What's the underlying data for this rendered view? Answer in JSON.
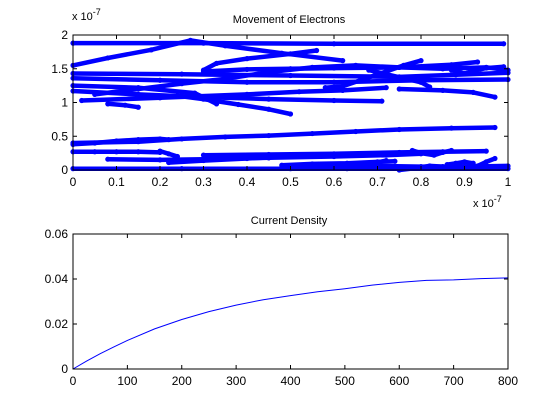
{
  "chart_data": [
    {
      "type": "scatter",
      "title": "Movement of Electrons",
      "xlabel": "",
      "ylabel": "",
      "x_exponent": "x 10",
      "x_exponent_power": "-7",
      "y_exponent": "x 10",
      "y_exponent_power": "-7",
      "xlim": [
        0,
        1
      ],
      "ylim": [
        0,
        2
      ],
      "x_ticks": [
        "0",
        "0.1",
        "0.2",
        "0.3",
        "0.4",
        "0.5",
        "0.6",
        "0.7",
        "0.8",
        "0.9",
        "1"
      ],
      "y_ticks": [
        "0",
        "0.5",
        "1",
        "1.5",
        "2"
      ],
      "marker": "dot",
      "color": "#0000ff",
      "grid": false,
      "series": [
        {
          "x": [
            0.0,
            0.3,
            0.6,
            0.99
          ],
          "y": [
            1.88,
            1.88,
            1.87,
            1.87
          ]
        },
        {
          "x": [
            0.0,
            0.08,
            0.18,
            0.27,
            0.35,
            0.48,
            0.62
          ],
          "y": [
            1.55,
            1.66,
            1.78,
            1.92,
            1.84,
            1.73,
            1.62
          ]
        },
        {
          "x": [
            0.0,
            0.25,
            0.5,
            0.75,
            0.88,
            1.0
          ],
          "y": [
            1.43,
            1.42,
            1.4,
            1.38,
            1.41,
            1.44
          ]
        },
        {
          "x": [
            0.0,
            0.2,
            0.4,
            0.6,
            0.8,
            1.0
          ],
          "y": [
            1.36,
            1.33,
            1.3,
            1.3,
            1.33,
            1.34
          ]
        },
        {
          "x": [
            0.0,
            0.15,
            0.28,
            0.33
          ],
          "y": [
            1.25,
            1.22,
            1.14,
            0.98
          ]
        },
        {
          "x": [
            0.0,
            0.15,
            0.3,
            0.45,
            0.6,
            0.71
          ],
          "y": [
            1.17,
            1.12,
            1.08,
            1.05,
            1.03,
            1.02
          ]
        },
        {
          "x": [
            0.02,
            0.2,
            0.4,
            0.52,
            0.62,
            0.72
          ],
          "y": [
            1.03,
            1.07,
            1.12,
            1.16,
            1.18,
            1.22
          ]
        },
        {
          "x": [
            0.05,
            0.15,
            0.25,
            0.35,
            0.45,
            0.55,
            0.65,
            0.75,
            0.85,
            0.95,
            1.0
          ],
          "y": [
            1.12,
            1.2,
            1.28,
            1.35,
            1.45,
            1.52,
            1.55,
            1.52,
            1.5,
            1.52,
            1.48
          ]
        },
        {
          "x": [
            0.3,
            0.4,
            0.5,
            0.6,
            0.75,
            0.87,
            0.93
          ],
          "y": [
            1.46,
            1.49,
            1.5,
            1.51,
            1.52,
            1.56,
            1.6
          ]
        },
        {
          "x": [
            0.3,
            0.33,
            0.4,
            0.5,
            0.56
          ],
          "y": [
            1.48,
            1.58,
            1.65,
            1.72,
            1.77
          ]
        },
        {
          "x": [
            0.58,
            0.62,
            0.67,
            0.72,
            0.76,
            0.8
          ],
          "y": [
            1.22,
            1.24,
            1.35,
            1.46,
            1.55,
            1.62
          ]
        },
        {
          "x": [
            0.68,
            0.72,
            0.8,
            0.82
          ],
          "y": [
            1.48,
            1.42,
            1.3,
            1.23
          ]
        },
        {
          "x": [
            0.08,
            0.12,
            0.15
          ],
          "y": [
            0.98,
            0.96,
            0.93
          ]
        },
        {
          "x": [
            0.75,
            0.85,
            0.92,
            0.97
          ],
          "y": [
            1.2,
            1.18,
            1.15,
            1.08
          ]
        },
        {
          "x": [
            0.87,
            0.9,
            0.92,
            0.95,
            0.99
          ],
          "y": [
            1.48,
            1.43,
            1.47,
            1.51,
            1.53
          ]
        },
        {
          "x": [
            0.24,
            0.3,
            0.38,
            0.45,
            0.5
          ],
          "y": [
            1.1,
            1.05,
            0.97,
            0.9,
            0.83
          ]
        },
        {
          "x": [
            0.0,
            0.15,
            0.25,
            0.35,
            0.45,
            0.55,
            0.65,
            0.75,
            0.87,
            0.97
          ],
          "y": [
            0.4,
            0.42,
            0.46,
            0.49,
            0.51,
            0.54,
            0.57,
            0.6,
            0.62,
            0.63
          ]
        },
        {
          "x": [
            0.0,
            0.05,
            0.1,
            0.15,
            0.2,
            0.22
          ],
          "y": [
            0.38,
            0.4,
            0.43,
            0.45,
            0.46,
            0.45
          ]
        },
        {
          "x": [
            0.0,
            0.05,
            0.1,
            0.15,
            0.2
          ],
          "y": [
            0.27,
            0.27,
            0.27,
            0.27,
            0.26
          ]
        },
        {
          "x": [
            0.08,
            0.2,
            0.3,
            0.45,
            0.6,
            0.72,
            0.8
          ],
          "y": [
            0.16,
            0.15,
            0.16,
            0.18,
            0.2,
            0.22,
            0.24
          ]
        },
        {
          "x": [
            0.3,
            0.45,
            0.6,
            0.75,
            0.85,
            0.95
          ],
          "y": [
            0.22,
            0.23,
            0.24,
            0.26,
            0.27,
            0.28
          ]
        },
        {
          "x": [
            0.22,
            0.3,
            0.4,
            0.5,
            0.55
          ],
          "y": [
            0.11,
            0.14,
            0.17,
            0.2,
            0.21
          ]
        },
        {
          "x": [
            0.0,
            0.25,
            0.5,
            0.75,
            1.0
          ],
          "y": [
            0.02,
            0.02,
            0.02,
            0.02,
            0.02
          ]
        },
        {
          "x": [
            0.5,
            0.6,
            0.7,
            0.8,
            0.9,
            1.0
          ],
          "y": [
            0.03,
            0.05,
            0.06,
            0.05,
            0.05,
            0.06
          ]
        },
        {
          "x": [
            0.48,
            0.55,
            0.63,
            0.7,
            0.74
          ],
          "y": [
            0.07,
            0.09,
            0.1,
            0.12,
            0.13
          ]
        },
        {
          "x": [
            0.63,
            0.66,
            0.69,
            0.72
          ],
          "y": [
            0.02,
            0.06,
            0.1,
            0.14
          ]
        },
        {
          "x": [
            0.78,
            0.8,
            0.83,
            0.85,
            0.87
          ],
          "y": [
            0.29,
            0.25,
            0.22,
            0.26,
            0.29
          ]
        },
        {
          "x": [
            0.86,
            0.88,
            0.9,
            0.92
          ],
          "y": [
            0.08,
            0.1,
            0.12,
            0.1
          ]
        },
        {
          "x": [
            0.93,
            0.95,
            0.97
          ],
          "y": [
            0.06,
            0.12,
            0.17
          ]
        },
        {
          "x": [
            0.24,
            0.22,
            0.2
          ],
          "y": [
            0.2,
            0.24,
            0.28
          ]
        },
        {
          "x": [
            0.75,
            0.79,
            0.82,
            0.85,
            0.88,
            0.9
          ],
          "y": [
            0.0,
            0.03,
            0.06,
            0.05,
            0.03,
            0.05
          ]
        }
      ]
    },
    {
      "type": "line",
      "title": "Current Density",
      "xlabel": "",
      "ylabel": "",
      "xlim": [
        0,
        800
      ],
      "ylim": [
        0,
        0.06
      ],
      "x_ticks": [
        "0",
        "100",
        "200",
        "300",
        "400",
        "500",
        "600",
        "700",
        "800"
      ],
      "y_ticks": [
        "0",
        "0.02",
        "0.04",
        "0.06"
      ],
      "color": "#0000ff",
      "grid": false,
      "x": [
        0,
        25,
        50,
        75,
        100,
        150,
        200,
        250,
        300,
        350,
        400,
        450,
        500,
        550,
        600,
        650,
        700,
        750,
        800
      ],
      "y": [
        0.0,
        0.0035,
        0.0068,
        0.0098,
        0.0127,
        0.0178,
        0.022,
        0.0255,
        0.0284,
        0.0308,
        0.0326,
        0.0343,
        0.0357,
        0.0373,
        0.0385,
        0.0394,
        0.0396,
        0.0402,
        0.0405
      ]
    }
  ]
}
